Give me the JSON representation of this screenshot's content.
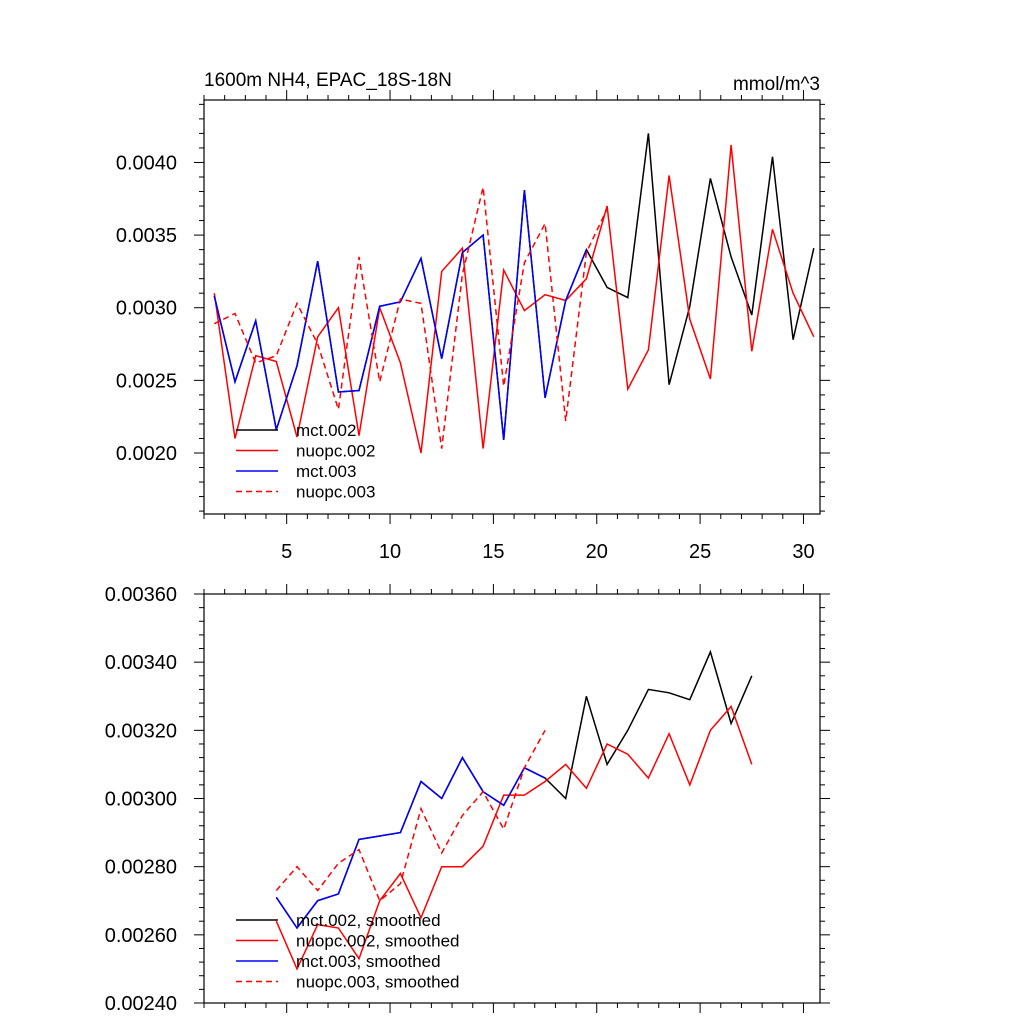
{
  "chart_data": [
    {
      "type": "line",
      "title": "1600m NH4, EPAC_18S-18N",
      "units": "mmol/m^3",
      "xlim": [
        1,
        30.8
      ],
      "ylim": [
        0.00158,
        0.00443
      ],
      "xticks": [
        5,
        10,
        15,
        20,
        25,
        30
      ],
      "xtick_labels": [
        "5",
        "10",
        "15",
        "20",
        "25",
        "30"
      ],
      "yticks": [
        0.002,
        0.0025,
        0.003,
        0.0035,
        0.004
      ],
      "ytick_labels": [
        "0.0020",
        "0.0025",
        "0.0030",
        "0.0035",
        "0.0040"
      ],
      "legend_position": "lower-left",
      "series": [
        {
          "name": "mct.002",
          "color": "#000000",
          "dash": "solid",
          "x": [
            1.5,
            2.5,
            3.5,
            4.5,
            5.5,
            6.5,
            7.5,
            8.5,
            9.5,
            10.5,
            11.5,
            12.5,
            13.5,
            14.5,
            15.5,
            16.5,
            17.5,
            18.5,
            19.5,
            20.5,
            21.5,
            22.5,
            23.5,
            24.5,
            25.5,
            26.5,
            27.5,
            28.5,
            29.5,
            30.5
          ],
          "values": [
            0.00308,
            0.00249,
            0.00291,
            0.00216,
            0.0026,
            0.00332,
            0.00242,
            0.00243,
            0.00301,
            0.00304,
            0.00334,
            0.00265,
            0.00338,
            0.0035,
            0.00209,
            0.00381,
            0.00238,
            0.00305,
            0.0034,
            0.00314,
            0.00307,
            0.0042,
            0.00247,
            0.00301,
            0.00389,
            0.00335,
            0.00295,
            0.00404,
            0.00278,
            0.00341
          ]
        },
        {
          "name": "nuopc.002",
          "color": "#ff0000",
          "dash": "solid",
          "x": [
            1.5,
            2.5,
            3.5,
            4.5,
            5.5,
            6.5,
            7.5,
            8.5,
            9.5,
            10.5,
            11.5,
            12.5,
            13.5,
            14.5,
            15.5,
            16.5,
            17.5,
            18.5,
            19.5,
            20.5,
            21.5,
            22.5,
            23.5,
            24.5,
            25.5,
            26.5,
            27.5,
            28.5,
            29.5,
            30.5
          ],
          "values": [
            0.0031,
            0.0021,
            0.00267,
            0.00263,
            0.00211,
            0.0028,
            0.003,
            0.00212,
            0.003,
            0.00262,
            0.002,
            0.00325,
            0.00341,
            0.00203,
            0.00326,
            0.00298,
            0.00309,
            0.00305,
            0.0032,
            0.0037,
            0.00244,
            0.00271,
            0.00391,
            0.00292,
            0.00251,
            0.00412,
            0.0027,
            0.00354,
            0.0031,
            0.0028
          ]
        },
        {
          "name": "mct.003",
          "color": "#0000ff",
          "dash": "solid",
          "x": [
            1.5,
            2.5,
            3.5,
            4.5,
            5.5,
            6.5,
            7.5,
            8.5,
            9.5,
            10.5,
            11.5,
            12.5,
            13.5,
            14.5,
            15.5,
            16.5,
            17.5,
            18.5,
            19.5
          ],
          "values": [
            0.00308,
            0.00249,
            0.00291,
            0.00216,
            0.0026,
            0.00332,
            0.00242,
            0.00243,
            0.00301,
            0.00304,
            0.00334,
            0.00265,
            0.00338,
            0.0035,
            0.00209,
            0.00381,
            0.00238,
            0.00305,
            0.0034
          ]
        },
        {
          "name": "nuopc.003",
          "color": "#ff0000",
          "dash": "dashed",
          "x": [
            1.5,
            2.5,
            3.5,
            4.5,
            5.5,
            6.5,
            7.5,
            8.5,
            9.5,
            10.5,
            11.5,
            12.5,
            13.5,
            14.5,
            15.5,
            16.5,
            17.5,
            18.5,
            19.5,
            20.5
          ],
          "values": [
            0.00289,
            0.00296,
            0.00262,
            0.00267,
            0.00303,
            0.00275,
            0.0023,
            0.00335,
            0.00249,
            0.00306,
            0.00303,
            0.00203,
            0.00323,
            0.00383,
            0.00246,
            0.00331,
            0.00358,
            0.00222,
            0.00338,
            0.00368
          ]
        }
      ]
    },
    {
      "type": "line",
      "title": "",
      "xlim": [
        1,
        30.8
      ],
      "ylim": [
        0.0024,
        0.0036
      ],
      "xticks": [
        5,
        10,
        15,
        20,
        25,
        30
      ],
      "yticks": [
        0.0024,
        0.0026,
        0.0028,
        0.003,
        0.0032,
        0.0034,
        0.0036
      ],
      "ytick_labels": [
        "0.00240",
        "0.00260",
        "0.00280",
        "0.00300",
        "0.00320",
        "0.00340",
        "0.00360"
      ],
      "legend_position": "lower-left",
      "series": [
        {
          "name": "mct.002, smoothed",
          "color": "#000000",
          "dash": "solid",
          "x": [
            4.5,
            5.5,
            6.5,
            7.5,
            8.5,
            9.5,
            10.5,
            11.5,
            12.5,
            13.5,
            14.5,
            15.5,
            16.5,
            17.5,
            18.5,
            19.5,
            20.5,
            21.5,
            22.5,
            23.5,
            24.5,
            25.5,
            26.5,
            27.5
          ],
          "values": [
            0.00271,
            0.00262,
            0.0027,
            0.00272,
            0.00288,
            0.00289,
            0.0029,
            0.00305,
            0.003,
            0.00312,
            0.00302,
            0.00298,
            0.00309,
            0.00306,
            0.003,
            0.0033,
            0.0031,
            0.0032,
            0.00332,
            0.00331,
            0.00329,
            0.00343,
            0.00322,
            0.00336
          ]
        },
        {
          "name": "nuopc.002, smoothed",
          "color": "#ff0000",
          "dash": "solid",
          "x": [
            4.5,
            5.5,
            6.5,
            7.5,
            8.5,
            9.5,
            10.5,
            11.5,
            12.5,
            13.5,
            14.5,
            15.5,
            16.5,
            17.5,
            18.5,
            19.5,
            20.5,
            21.5,
            22.5,
            23.5,
            24.5,
            25.5,
            26.5,
            27.5
          ],
          "values": [
            0.00264,
            0.0025,
            0.00263,
            0.00262,
            0.00253,
            0.0027,
            0.00278,
            0.00265,
            0.0028,
            0.0028,
            0.00286,
            0.00301,
            0.00301,
            0.00305,
            0.0031,
            0.00303,
            0.00316,
            0.00313,
            0.00306,
            0.00319,
            0.00304,
            0.0032,
            0.00327,
            0.0031
          ]
        },
        {
          "name": "mct.003, smoothed",
          "color": "#0000ff",
          "dash": "solid",
          "x": [
            4.5,
            5.5,
            6.5,
            7.5,
            8.5,
            9.5,
            10.5,
            11.5,
            12.5,
            13.5,
            14.5,
            15.5,
            16.5,
            17.5
          ],
          "values": [
            0.00271,
            0.00262,
            0.0027,
            0.00272,
            0.00288,
            0.00289,
            0.0029,
            0.00305,
            0.003,
            0.00312,
            0.00302,
            0.00298,
            0.00309,
            0.00306
          ]
        },
        {
          "name": "nuopc.003, smoothed",
          "color": "#ff0000",
          "dash": "dashed",
          "x": [
            4.5,
            5.5,
            6.5,
            7.5,
            8.5,
            9.5,
            10.5,
            11.5,
            12.5,
            13.5,
            14.5,
            15.5,
            16.5,
            17.5
          ],
          "values": [
            0.00273,
            0.0028,
            0.00273,
            0.00281,
            0.00285,
            0.0027,
            0.00275,
            0.00297,
            0.00284,
            0.00295,
            0.00302,
            0.00291,
            0.00309,
            0.0032
          ]
        }
      ]
    }
  ]
}
